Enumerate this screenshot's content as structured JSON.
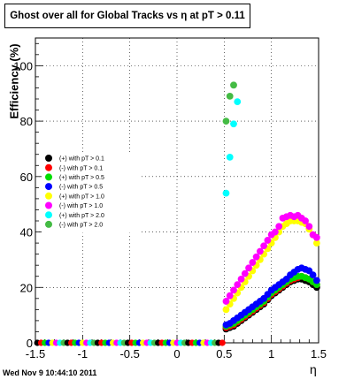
{
  "title": "Ghost over all for Global Tracks vs η at pT > 0.11",
  "timestamp": "Wed Nov  9 10:44:10 2011",
  "chart_data": {
    "type": "scatter",
    "title": "Ghost over all for Global Tracks vs η at pT > 0.11",
    "xlabel": "η",
    "ylabel": "Efficiency (%)",
    "xlim": [
      -1.5,
      1.5
    ],
    "ylim": [
      0,
      110
    ],
    "grid": true,
    "legend_position": "left",
    "x_ticks": [
      -1.5,
      -1,
      -0.5,
      0,
      0.5,
      1,
      1.5
    ],
    "x_tick_labels": [
      "-1.5",
      "-1",
      "-0.5",
      "0",
      "0.5",
      "1",
      "1.5"
    ],
    "y_ticks": [
      0,
      20,
      40,
      60,
      80,
      100
    ],
    "y_tick_labels": [
      "0",
      "20",
      "40",
      "60",
      "80",
      "100"
    ],
    "series": [
      {
        "name": "(+) with pT > 0.1",
        "color": "#000000",
        "x": [
          0.52,
          0.56,
          0.6,
          0.64,
          0.68,
          0.72,
          0.76,
          0.8,
          0.84,
          0.88,
          0.92,
          0.96,
          1.0,
          1.04,
          1.08,
          1.12,
          1.16,
          1.2,
          1.24,
          1.28,
          1.32,
          1.36,
          1.4,
          1.44,
          1.48
        ],
        "y": [
          5,
          5.5,
          6,
          7,
          8,
          9,
          10,
          11,
          12,
          13,
          14,
          15.5,
          17,
          18,
          19,
          20,
          21,
          22,
          22.5,
          23,
          23,
          22.5,
          22,
          21,
          20
        ]
      },
      {
        "name": "(-) with pT > 0.1",
        "color": "#ff0000",
        "x": [
          0.52,
          0.56,
          0.6,
          0.64,
          0.68,
          0.72,
          0.76,
          0.8,
          0.84,
          0.88,
          0.92,
          0.96,
          1.0,
          1.04,
          1.08,
          1.12,
          1.16,
          1.2,
          1.24,
          1.28,
          1.32,
          1.36,
          1.4,
          1.44,
          1.48
        ],
        "y": [
          5.5,
          6,
          6.5,
          7.5,
          8.5,
          9.5,
          10.5,
          11.5,
          12.5,
          13.5,
          14.5,
          16,
          17.5,
          18.5,
          19.5,
          20.5,
          21.5,
          22.5,
          23,
          23.5,
          24,
          23.5,
          23,
          22,
          21
        ]
      },
      {
        "name": "(+) with pT > 0.5",
        "color": "#00dd00",
        "x": [
          0.52,
          0.56,
          0.6,
          0.64,
          0.68,
          0.72,
          0.76,
          0.8,
          0.84,
          0.88,
          0.92,
          0.96,
          1.0,
          1.04,
          1.08,
          1.12,
          1.16,
          1.2,
          1.24,
          1.28,
          1.32,
          1.36,
          1.4,
          1.44,
          1.48
        ],
        "y": [
          6,
          6.5,
          7,
          8,
          9,
          10,
          11,
          12,
          13,
          14,
          15,
          16.5,
          18,
          19,
          20,
          21,
          22,
          23,
          23.5,
          24,
          24,
          23.5,
          23,
          22,
          21
        ]
      },
      {
        "name": "(-) with pT > 0.5",
        "color": "#0000ff",
        "x": [
          0.52,
          0.56,
          0.6,
          0.64,
          0.68,
          0.72,
          0.76,
          0.8,
          0.84,
          0.88,
          0.92,
          0.96,
          1.0,
          1.04,
          1.08,
          1.12,
          1.16,
          1.2,
          1.24,
          1.28,
          1.32,
          1.36,
          1.4,
          1.44,
          1.48
        ],
        "y": [
          6.5,
          7,
          8,
          9,
          10,
          11,
          12,
          13,
          14,
          15,
          16,
          17.5,
          19,
          20,
          21,
          22,
          23,
          24.5,
          25.5,
          26.5,
          27,
          26.5,
          26,
          24.5,
          22.5
        ]
      },
      {
        "name": "(+) with pT > 1.0",
        "color": "#ffff00",
        "x": [
          0.52,
          0.56,
          0.6,
          0.64,
          0.68,
          0.72,
          0.76,
          0.8,
          0.84,
          0.88,
          0.92,
          0.96,
          1.0,
          1.04,
          1.08,
          1.12,
          1.16,
          1.2,
          1.24,
          1.28,
          1.32,
          1.36,
          1.4,
          1.44,
          1.48
        ],
        "y": [
          12,
          14,
          16,
          18,
          20,
          22,
          24,
          26,
          28,
          30,
          32,
          34,
          36,
          38,
          40,
          42,
          43,
          44,
          44,
          44,
          43.5,
          43,
          41,
          39,
          36
        ]
      },
      {
        "name": "(-) with pT > 1.0",
        "color": "#ff00ff",
        "x": [
          0.52,
          0.56,
          0.6,
          0.64,
          0.68,
          0.72,
          0.76,
          0.8,
          0.84,
          0.88,
          0.92,
          0.96,
          1.0,
          1.04,
          1.08,
          1.12,
          1.16,
          1.2,
          1.24,
          1.28,
          1.32,
          1.36,
          1.4,
          1.44,
          1.48
        ],
        "y": [
          15,
          17,
          19,
          21,
          23,
          25,
          27,
          29,
          31,
          33,
          35,
          37,
          39,
          40,
          42,
          45,
          45.5,
          46,
          45.5,
          46,
          45,
          44,
          42,
          39,
          38
        ]
      },
      {
        "name": "(+) with pT > 2.0",
        "color": "#00ffff",
        "x": [
          0.52,
          0.56,
          0.6,
          0.64
        ],
        "y": [
          54,
          67,
          79,
          87
        ]
      },
      {
        "name": "(-) with pT > 2.0",
        "color": "#44bb44",
        "x": [
          0.52,
          0.56,
          0.6
        ],
        "y": [
          80,
          89,
          93
        ]
      }
    ],
    "baseline_points": {
      "x": [
        -1.48,
        -1.44,
        -1.4,
        -1.36,
        -1.32,
        -1.28,
        -1.24,
        -1.2,
        -1.16,
        -1.12,
        -1.08,
        -1.04,
        -1.0,
        -0.96,
        -0.92,
        -0.88,
        -0.84,
        -0.8,
        -0.76,
        -0.72,
        -0.68,
        -0.64,
        -0.6,
        -0.56,
        -0.52,
        -0.48,
        -0.44,
        -0.4,
        -0.36,
        -0.32,
        -0.28,
        -0.24,
        -0.2,
        -0.16,
        -0.12,
        -0.08,
        -0.04,
        0.0,
        0.04,
        0.08,
        0.12,
        0.16,
        0.2,
        0.24,
        0.28,
        0.32,
        0.36,
        0.4,
        0.44,
        0.48
      ],
      "y": 0
    }
  }
}
